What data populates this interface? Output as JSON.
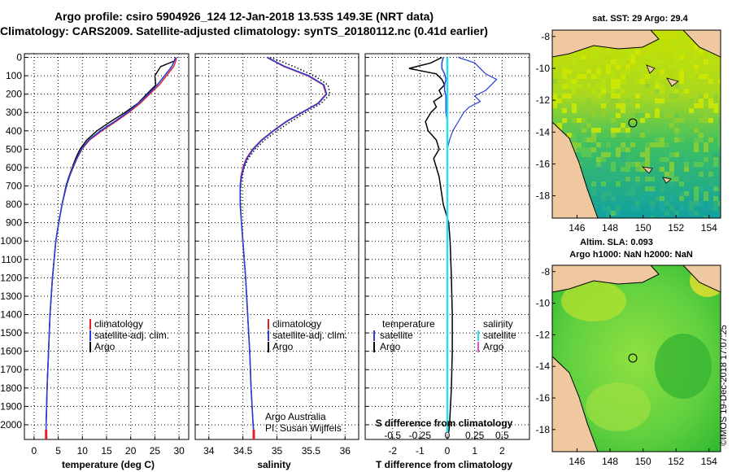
{
  "title_line1": "Argo profile: csiro 5904926_124 12-Jan-2018 13.53S 149.3E (NRT data)",
  "title_line2": "Climatology: CARS2009. Satellite-adjusted climatology: synTS_20180112.nc (0.41d earlier)",
  "colors": {
    "climatology": "#e0202a",
    "satellite": "#2a3ed8",
    "argo": "#000000",
    "salinity_sat": "#22e0f0",
    "salinity_argo": "#e050c8"
  },
  "chart_data": [
    {
      "type": "line",
      "name": "temperature",
      "xlabel": "temperature (deg C)",
      "xlim": [
        -2,
        32
      ],
      "ylim": [
        2080,
        -20
      ],
      "xticks": [
        0,
        5,
        10,
        15,
        20,
        25,
        30
      ],
      "yticks": [
        0,
        100,
        200,
        300,
        400,
        500,
        600,
        700,
        800,
        900,
        1000,
        1100,
        1200,
        1300,
        1400,
        1500,
        1600,
        1700,
        1800,
        1900,
        2000
      ],
      "depth": [
        0,
        20,
        50,
        100,
        150,
        200,
        250,
        300,
        350,
        400,
        450,
        500,
        550,
        600,
        650,
        700,
        800,
        900,
        1000,
        1200,
        1400,
        1600,
        1800,
        2000,
        2040
      ],
      "series": [
        {
          "name": "climatology",
          "values": [
            29.5,
            29.3,
            28.9,
            27.4,
            25.9,
            23.9,
            22.0,
            19.6,
            16.9,
            14.0,
            11.5,
            9.9,
            8.9,
            8.1,
            7.3,
            6.7,
            5.8,
            5.1,
            4.5,
            3.8,
            3.3,
            3.0,
            2.7,
            2.5,
            2.5
          ]
        },
        {
          "name": "satellite-adj. clim.",
          "values": [
            29.3,
            29.0,
            28.5,
            27.0,
            25.5,
            23.6,
            21.6,
            19.3,
            16.6,
            13.7,
            11.3,
            9.8,
            8.8,
            8.0,
            7.3,
            6.7,
            5.8,
            5.1,
            4.5,
            3.8,
            3.3,
            3.0,
            2.7,
            2.5,
            2.5
          ]
        },
        {
          "name": "Argo",
          "values": [
            29.3,
            29.0,
            26.2,
            25.0,
            25.2,
            23.3,
            21.5,
            18.8,
            15.8,
            13.0,
            10.9,
            9.5,
            8.6,
            7.9,
            7.2,
            6.6,
            5.8,
            5.1,
            4.5,
            3.8,
            3.3,
            3.0,
            2.7,
            2.5,
            2.5
          ]
        }
      ],
      "legend": [
        "climatology",
        "satellite-adj. clim.",
        "Argo"
      ]
    },
    {
      "type": "line",
      "name": "salinity",
      "xlabel": "salinity",
      "xlim": [
        33.8,
        36.2
      ],
      "ylim": [
        2080,
        -20
      ],
      "xticks": [
        34,
        34.5,
        35,
        35.5,
        36
      ],
      "depth": [
        0,
        20,
        50,
        100,
        150,
        200,
        250,
        300,
        350,
        400,
        450,
        500,
        550,
        600,
        650,
        700,
        800,
        900,
        1000,
        1200,
        1400,
        1600,
        1800,
        2000,
        2040
      ],
      "series": [
        {
          "name": "climatology",
          "values": [
            34.85,
            34.95,
            35.1,
            35.45,
            35.68,
            35.72,
            35.6,
            35.36,
            35.13,
            34.94,
            34.77,
            34.64,
            34.55,
            34.5,
            34.47,
            34.46,
            34.46,
            34.48,
            34.5,
            34.54,
            34.57,
            34.6,
            34.62,
            34.65,
            34.66
          ]
        },
        {
          "name": "satellite-adj. clim.",
          "values": [
            34.86,
            34.96,
            35.12,
            35.47,
            35.69,
            35.73,
            35.61,
            35.37,
            35.14,
            34.95,
            34.78,
            34.65,
            34.56,
            34.51,
            34.48,
            34.46,
            34.46,
            34.48,
            34.5,
            34.54,
            34.57,
            34.6,
            34.62,
            34.65,
            34.66
          ]
        },
        {
          "name": "Argo",
          "values": [
            34.9,
            35.05,
            35.25,
            35.55,
            35.75,
            35.78,
            35.65,
            35.42,
            35.2,
            35.0,
            34.82,
            34.68,
            34.58,
            34.52,
            34.49,
            34.47,
            34.47,
            34.48,
            34.5,
            34.54,
            34.57,
            34.6,
            34.62,
            34.65,
            34.66
          ]
        }
      ],
      "legend": [
        "climatology",
        "satellite-adj. clim.",
        "Argo"
      ],
      "annotations": [
        "Argo Australia",
        "PI: Susan Wijffels"
      ]
    },
    {
      "type": "line",
      "name": "difference",
      "xlabel": "T difference from climatology",
      "x2label": "S difference from climatology",
      "xlim": [
        -3,
        3
      ],
      "ylim": [
        2080,
        -20
      ],
      "xticks": [
        -2,
        -1,
        0,
        1,
        2
      ],
      "xtick_labels": [
        "-2",
        "-1",
        "0",
        "1",
        "2"
      ],
      "x2ticks": [
        -0.5,
        -0.25,
        0,
        0.25,
        0.5
      ],
      "x2tick_labels": [
        "-0.5",
        "-0.25",
        "0",
        "0.25",
        "0.5"
      ],
      "depth": [
        0,
        30,
        60,
        90,
        120,
        150,
        180,
        210,
        240,
        270,
        300,
        350,
        400,
        450,
        500,
        550,
        600,
        650,
        700,
        800,
        900,
        1000,
        1200,
        1400,
        1600,
        1800,
        2000,
        2040
      ],
      "series": [
        {
          "name": "temperature Argo",
          "values": [
            -0.2,
            -0.6,
            -1.4,
            -0.4,
            -0.2,
            -0.1,
            -0.3,
            -0.2,
            -0.5,
            -0.4,
            -0.6,
            -0.8,
            -0.7,
            -0.4,
            -0.3,
            -0.5,
            -0.4,
            -0.3,
            -0.25,
            -0.15,
            0.05,
            0.1,
            0.15,
            0.18,
            0.18,
            0.15,
            0.08,
            0.05
          ]
        },
        {
          "name": "temperature satellite",
          "values": [
            -0.15,
            -0.2,
            -0.2,
            -0.1,
            -0.05,
            -0.1,
            -0.1,
            -0.05,
            -0.05,
            -0.05,
            -0.05,
            0,
            0,
            0,
            0,
            0,
            0,
            0,
            0,
            0,
            0,
            0,
            0,
            0,
            0,
            0,
            0,
            0
          ]
        },
        {
          "name": "salinity Argo",
          "values": [
            0.1,
            0.25,
            0.3,
            0.35,
            0.45,
            0.4,
            0.35,
            0.25,
            0.3,
            0.2,
            0.15,
            0.1,
            0.05,
            0.02,
            0,
            0,
            0,
            0,
            0,
            0,
            0,
            0,
            0,
            0,
            0,
            0,
            0,
            0
          ]
        },
        {
          "name": "salinity satellite",
          "values": [
            0.0,
            0.0,
            0.0,
            0.0,
            0.0,
            0.0,
            0.0,
            0.0,
            0.0,
            0.0,
            0.0,
            0,
            0,
            0,
            0,
            0,
            0,
            0,
            0,
            0,
            0,
            0,
            0,
            0,
            0,
            0,
            0,
            0
          ]
        }
      ],
      "legend_temperature": {
        "title": "temperature",
        "items": [
          "satellite",
          "Argo"
        ]
      },
      "legend_salinity": {
        "title": "salinity",
        "items": [
          "satellite",
          "Argo"
        ]
      }
    },
    {
      "type": "heatmap",
      "name": "sst map",
      "title": "sat. SST: 29 Argo: 29.4",
      "xticks": [
        146,
        148,
        150,
        152,
        154
      ],
      "yticks": [
        -8,
        -10,
        -12,
        -14,
        -16,
        -18
      ]
    },
    {
      "type": "heatmap",
      "name": "sla map",
      "title1": "Altim. SLA: 0.093",
      "title2": "Argo h1000: NaN h2000: NaN",
      "xticks": [
        146,
        148,
        150,
        152,
        154
      ],
      "yticks": [
        -8,
        -10,
        -12,
        -14,
        -16,
        -18
      ]
    }
  ],
  "credit": "©IMOS 19-Dec-2018 17:07:25"
}
